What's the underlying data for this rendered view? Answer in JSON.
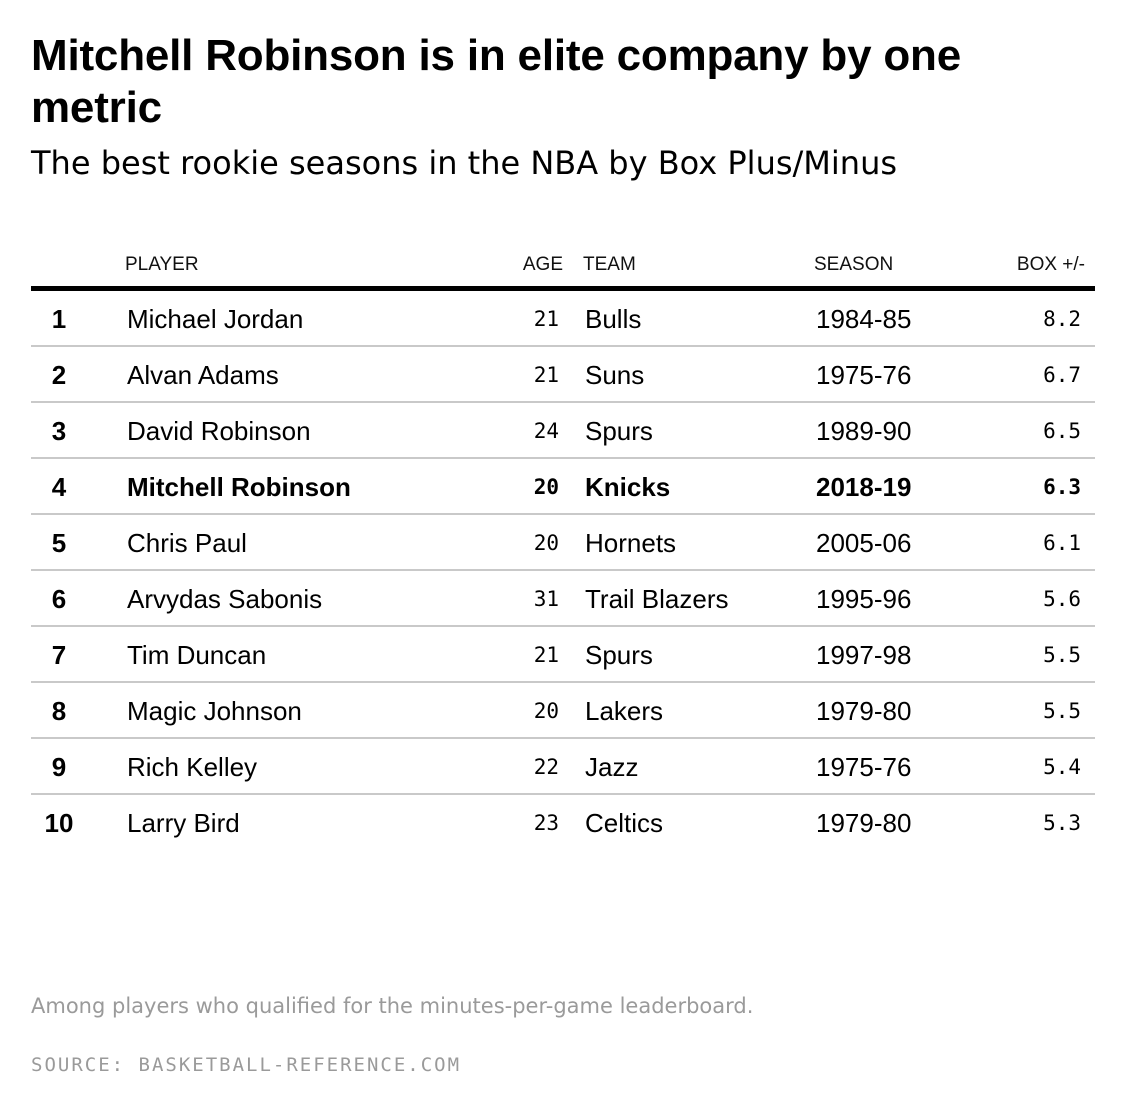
{
  "title": "Mitchell Robinson is in elite company by one metric",
  "subtitle": "The best rookie seasons in the NBA by Box Plus/Minus",
  "chart_data": {
    "type": "table",
    "columns": [
      "",
      "PLAYER",
      "AGE",
      "TEAM",
      "SEASON",
      "BOX +/-"
    ],
    "highlight_rank": "4",
    "rows": [
      {
        "rank": "1",
        "player": "Michael Jordan",
        "age": "21",
        "team": "Bulls",
        "season": "1984-85",
        "box": "8.2"
      },
      {
        "rank": "2",
        "player": "Alvan Adams",
        "age": "21",
        "team": "Suns",
        "season": "1975-76",
        "box": "6.7"
      },
      {
        "rank": "3",
        "player": "David Robinson",
        "age": "24",
        "team": "Spurs",
        "season": "1989-90",
        "box": "6.5"
      },
      {
        "rank": "4",
        "player": "Mitchell Robinson",
        "age": "20",
        "team": "Knicks",
        "season": "2018-19",
        "box": "6.3"
      },
      {
        "rank": "5",
        "player": "Chris Paul",
        "age": "20",
        "team": "Hornets",
        "season": "2005-06",
        "box": "6.1"
      },
      {
        "rank": "6",
        "player": "Arvydas Sabonis",
        "age": "31",
        "team": "Trail Blazers",
        "season": "1995-96",
        "box": "5.6"
      },
      {
        "rank": "7",
        "player": "Tim Duncan",
        "age": "21",
        "team": "Spurs",
        "season": "1997-98",
        "box": "5.5"
      },
      {
        "rank": "8",
        "player": "Magic Johnson",
        "age": "20",
        "team": "Lakers",
        "season": "1979-80",
        "box": "5.5"
      },
      {
        "rank": "9",
        "player": "Rich Kelley",
        "age": "22",
        "team": "Jazz",
        "season": "1975-76",
        "box": "5.4"
      },
      {
        "rank": "10",
        "player": "Larry Bird",
        "age": "23",
        "team": "Celtics",
        "season": "1979-80",
        "box": "5.3"
      }
    ]
  },
  "note": "Among players who qualified for the minutes-per-game leaderboard.",
  "source": "SOURCE: BASKETBALL-REFERENCE.COM"
}
